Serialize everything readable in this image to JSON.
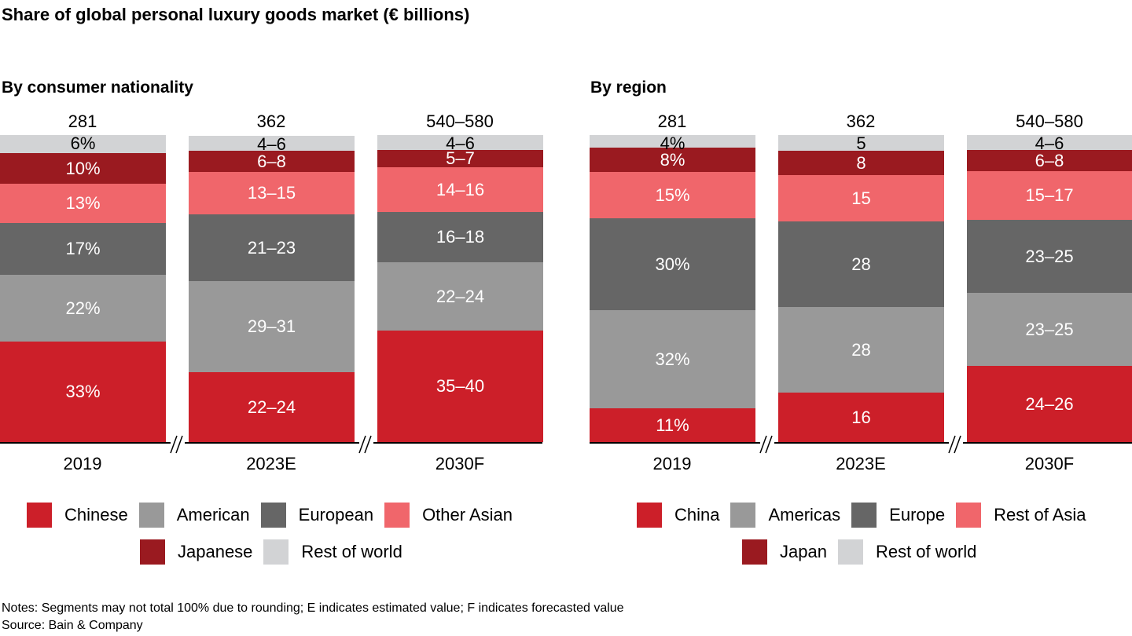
{
  "title": "Share of global personal luxury goods market (€ billions)",
  "colors": {
    "red": "#cc1f29",
    "mid_gray": "#999999",
    "dark_gray": "#666666",
    "pink": "#f0666b",
    "dark_red": "#9a1a20",
    "light_gray": "#d2d3d5"
  },
  "notes": "Notes: Segments may not total 100% due to rounding; E indicates estimated value; F indicates forecasted value",
  "source": "Source: Bain & Company",
  "chart_data": [
    {
      "type": "bar",
      "stacked": true,
      "title": "By consumer nationality",
      "categories": [
        "2019",
        "2023E",
        "2030F"
      ],
      "totals": [
        "281",
        "362",
        "540–580"
      ],
      "series": [
        {
          "name": "Chinese",
          "color": "#cc1f29",
          "labels": [
            "33%",
            "22–24",
            "35–40"
          ],
          "values": [
            33,
            23,
            37.5
          ]
        },
        {
          "name": "American",
          "color": "#999999",
          "labels": [
            "22%",
            "29–31",
            "22–24"
          ],
          "values": [
            22,
            30,
            23
          ]
        },
        {
          "name": "European",
          "color": "#666666",
          "labels": [
            "17%",
            "21–23",
            "16–18"
          ],
          "values": [
            17,
            22,
            17
          ]
        },
        {
          "name": "Other Asian",
          "color": "#f0666b",
          "labels": [
            "13%",
            "13–15",
            "14–16"
          ],
          "values": [
            13,
            14,
            15
          ]
        },
        {
          "name": "Japanese",
          "color": "#9a1a20",
          "labels": [
            "10%",
            "6–8",
            "5–7"
          ],
          "values": [
            10,
            7,
            6
          ]
        },
        {
          "name": "Rest of world",
          "color": "#d2d3d5",
          "labels": [
            "6%",
            "4–6",
            "4–6"
          ],
          "values": [
            6,
            5,
            5
          ]
        }
      ],
      "legend": [
        [
          "Chinese",
          "American",
          "European",
          "Other Asian"
        ],
        [
          "Japanese",
          "Rest of world"
        ]
      ],
      "legend_position": "bottom",
      "axis_breaks": true,
      "grid": false
    },
    {
      "type": "bar",
      "stacked": true,
      "title": "By region",
      "categories": [
        "2019",
        "2023E",
        "2030F"
      ],
      "totals": [
        "281",
        "362",
        "540–580"
      ],
      "series": [
        {
          "name": "China",
          "color": "#cc1f29",
          "labels": [
            "11%",
            "16",
            "24–26"
          ],
          "values": [
            11,
            16,
            25
          ]
        },
        {
          "name": "Americas",
          "color": "#999999",
          "labels": [
            "32%",
            "28",
            "23–25"
          ],
          "values": [
            32,
            28,
            24
          ]
        },
        {
          "name": "Europe",
          "color": "#666666",
          "labels": [
            "30%",
            "28",
            "23–25"
          ],
          "values": [
            30,
            28,
            24
          ]
        },
        {
          "name": "Rest of Asia",
          "color": "#f0666b",
          "labels": [
            "15%",
            "15",
            "15–17"
          ],
          "values": [
            15,
            15,
            16
          ]
        },
        {
          "name": "Japan",
          "color": "#9a1a20",
          "labels": [
            "8%",
            "8",
            "6–8"
          ],
          "values": [
            8,
            8,
            7
          ]
        },
        {
          "name": "Rest of world",
          "color": "#d2d3d5",
          "labels": [
            "4%",
            "5",
            "4–6"
          ],
          "values": [
            4,
            5,
            5
          ]
        }
      ],
      "legend": [
        [
          "China",
          "Americas",
          "Europe",
          "Rest of Asia"
        ],
        [
          "Japan",
          "Rest of world"
        ]
      ],
      "legend_position": "bottom",
      "axis_breaks": true,
      "grid": false
    }
  ]
}
